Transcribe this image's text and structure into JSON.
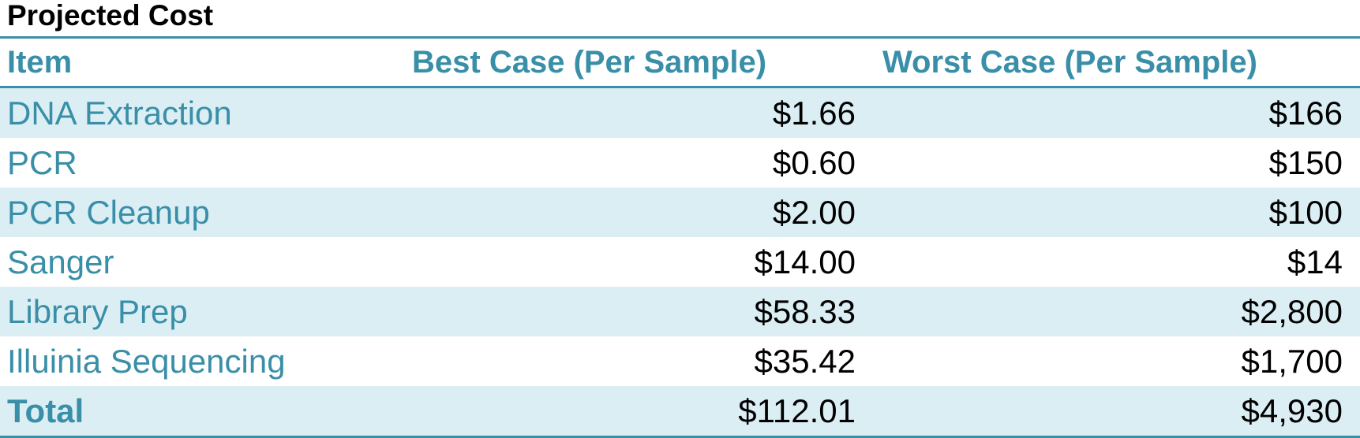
{
  "title": "Projected Cost",
  "headers": {
    "item": "Item",
    "best": "Best Case (Per Sample)",
    "worst": "Worst Case (Per Sample)"
  },
  "rows": [
    {
      "item": "DNA Extraction",
      "best": "$1.66",
      "worst": "$166"
    },
    {
      "item": "PCR",
      "best": "$0.60",
      "worst": "$150"
    },
    {
      "item": "PCR Cleanup",
      "best": "$2.00",
      "worst": "$100"
    },
    {
      "item": "Sanger",
      "best": "$14.00",
      "worst": "$14"
    },
    {
      "item": "Library Prep",
      "best": "$58.33",
      "worst": "$2,800"
    },
    {
      "item": "Illuinia Sequencing",
      "best": "$35.42",
      "worst": "$1,700"
    }
  ],
  "total": {
    "item": "Total",
    "best": "$112.01",
    "worst": "$4,930"
  },
  "colors": {
    "accent": "#3a8fa8",
    "band": "#dbeef4",
    "text": "#000000"
  }
}
